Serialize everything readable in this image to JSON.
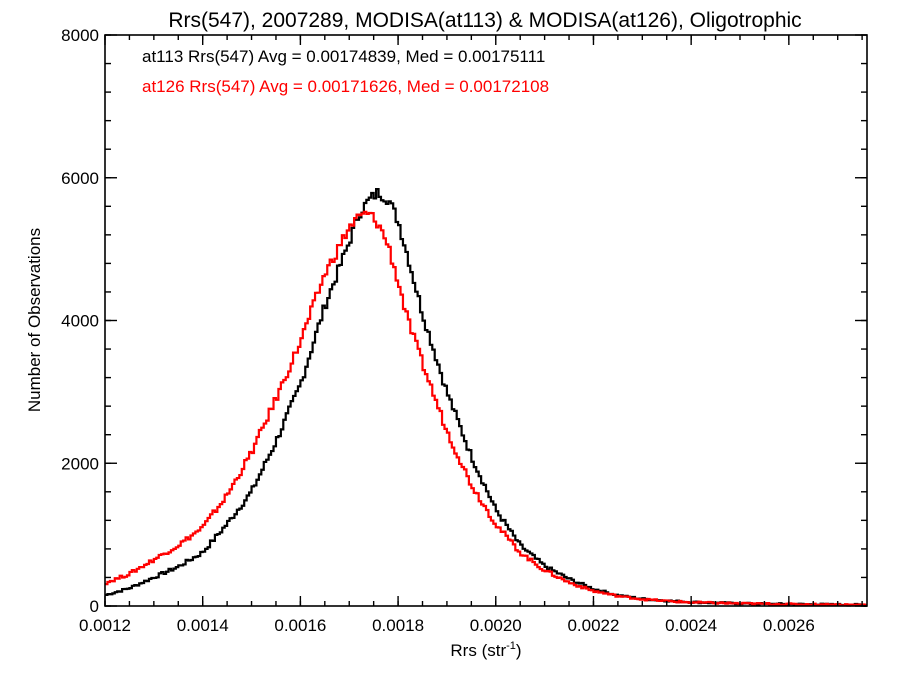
{
  "chart_data": {
    "type": "line",
    "title": "Rrs(547), 2007289, MODISA(at113) & MODISA(at126), Oligotrophic",
    "xlabel": "Rrs (str",
    "xlabel_sup": "-1",
    "xlabel_end": ")",
    "ylabel": "Number of Observations",
    "xlim": [
      0.0012,
      0.00276
    ],
    "ylim": [
      0,
      8000
    ],
    "xticks": [
      0.0012,
      0.0014,
      0.0016,
      0.0018,
      0.002,
      0.0022,
      0.0024,
      0.0026
    ],
    "xtick_labels": [
      "0.0012",
      "0.0014",
      "0.0016",
      "0.0018",
      "0.0020",
      "0.0022",
      "0.0024",
      "0.0026"
    ],
    "yticks": [
      0,
      2000,
      4000,
      6000,
      8000
    ],
    "ytick_labels": [
      "0",
      "2000",
      "4000",
      "6000",
      "8000"
    ],
    "grid": false,
    "legend_placement": "top-left",
    "series": [
      {
        "name": "at113",
        "legend_text": "at113 Rrs(547) Avg = 0.00174839, Med = 0.00175111",
        "color": "#000000",
        "points": [
          [
            0.0012,
            150
          ],
          [
            0.00125,
            250
          ],
          [
            0.0013,
            400
          ],
          [
            0.00135,
            550
          ],
          [
            0.0014,
            750
          ],
          [
            0.00145,
            1150
          ],
          [
            0.0015,
            1600
          ],
          [
            0.00155,
            2300
          ],
          [
            0.0016,
            3100
          ],
          [
            0.00165,
            4200
          ],
          [
            0.0017,
            5100
          ],
          [
            0.00172,
            5500
          ],
          [
            0.00174,
            5680
          ],
          [
            0.00176,
            5800
          ],
          [
            0.00178,
            5700
          ],
          [
            0.0018,
            5400
          ],
          [
            0.00182,
            4900
          ],
          [
            0.00185,
            4100
          ],
          [
            0.0019,
            3000
          ],
          [
            0.00195,
            2100
          ],
          [
            0.002,
            1350
          ],
          [
            0.00205,
            850
          ],
          [
            0.0021,
            560
          ],
          [
            0.00215,
            380
          ],
          [
            0.0022,
            240
          ],
          [
            0.00225,
            150
          ],
          [
            0.0023,
            100
          ],
          [
            0.00235,
            75
          ],
          [
            0.0024,
            55
          ],
          [
            0.0025,
            35
          ],
          [
            0.0026,
            25
          ],
          [
            0.00276,
            15
          ]
        ]
      },
      {
        "name": "at126",
        "legend_text": "at126 Rrs(547) Avg = 0.00171626, Med = 0.00172108",
        "color": "#ff0000",
        "points": [
          [
            0.0012,
            320
          ],
          [
            0.00125,
            450
          ],
          [
            0.0013,
            650
          ],
          [
            0.00135,
            850
          ],
          [
            0.0014,
            1100
          ],
          [
            0.00145,
            1550
          ],
          [
            0.0015,
            2150
          ],
          [
            0.00155,
            2900
          ],
          [
            0.0016,
            3700
          ],
          [
            0.00165,
            4650
          ],
          [
            0.0017,
            5300
          ],
          [
            0.00172,
            5450
          ],
          [
            0.00174,
            5500
          ],
          [
            0.00176,
            5350
          ],
          [
            0.00178,
            5050
          ],
          [
            0.0018,
            4550
          ],
          [
            0.00182,
            4000
          ],
          [
            0.00185,
            3400
          ],
          [
            0.0019,
            2450
          ],
          [
            0.00195,
            1700
          ],
          [
            0.002,
            1150
          ],
          [
            0.00205,
            750
          ],
          [
            0.0021,
            500
          ],
          [
            0.00215,
            330
          ],
          [
            0.0022,
            210
          ],
          [
            0.00225,
            140
          ],
          [
            0.0023,
            95
          ],
          [
            0.00235,
            70
          ],
          [
            0.0024,
            50
          ],
          [
            0.0025,
            35
          ],
          [
            0.0026,
            25
          ],
          [
            0.00276,
            15
          ]
        ]
      }
    ]
  }
}
